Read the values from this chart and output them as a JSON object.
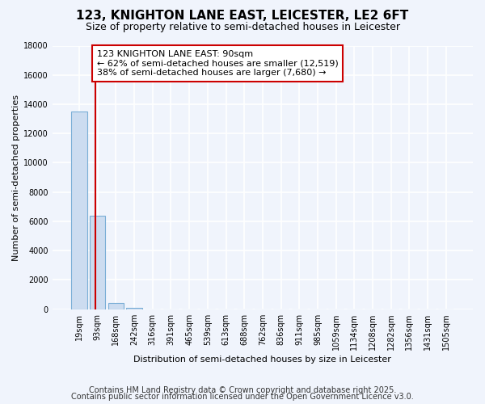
{
  "title": "123, KNIGHTON LANE EAST, LEICESTER, LE2 6FT",
  "subtitle": "Size of property relative to semi-detached houses in Leicester",
  "xlabel": "Distribution of semi-detached houses by size in Leicester",
  "ylabel": "Number of semi-detached properties",
  "categories": [
    "19sqm",
    "93sqm",
    "168sqm",
    "242sqm",
    "316sqm",
    "391sqm",
    "465sqm",
    "539sqm",
    "613sqm",
    "688sqm",
    "762sqm",
    "836sqm",
    "911sqm",
    "985sqm",
    "1059sqm",
    "1134sqm",
    "1208sqm",
    "1282sqm",
    "1356sqm",
    "1431sqm",
    "1505sqm"
  ],
  "values": [
    13500,
    6400,
    400,
    100,
    0,
    0,
    0,
    0,
    0,
    0,
    0,
    0,
    0,
    0,
    0,
    0,
    0,
    0,
    0,
    0,
    0
  ],
  "bar_color": "#ccdcf0",
  "bar_edge_color": "#7aaed6",
  "background_color": "#f0f4fc",
  "grid_color": "#ffffff",
  "vline_x": 0.9,
  "vline_color": "#cc0000",
  "annotation_line1": "123 KNIGHTON LANE EAST: 90sqm",
  "annotation_line2": "← 62% of semi-detached houses are smaller (12,519)",
  "annotation_line3": "38% of semi-detached houses are larger (7,680) →",
  "annotation_box_color": "#ffffff",
  "annotation_box_edge": "#cc0000",
  "ylim": [
    0,
    18000
  ],
  "yticks": [
    0,
    2000,
    4000,
    6000,
    8000,
    10000,
    12000,
    14000,
    16000,
    18000
  ],
  "footer_line1": "Contains HM Land Registry data © Crown copyright and database right 2025.",
  "footer_line2": "Contains public sector information licensed under the Open Government Licence v3.0.",
  "title_fontsize": 11,
  "subtitle_fontsize": 9,
  "ylabel_fontsize": 8,
  "xlabel_fontsize": 8,
  "tick_fontsize": 7,
  "annotation_fontsize": 8,
  "footer_fontsize": 7
}
